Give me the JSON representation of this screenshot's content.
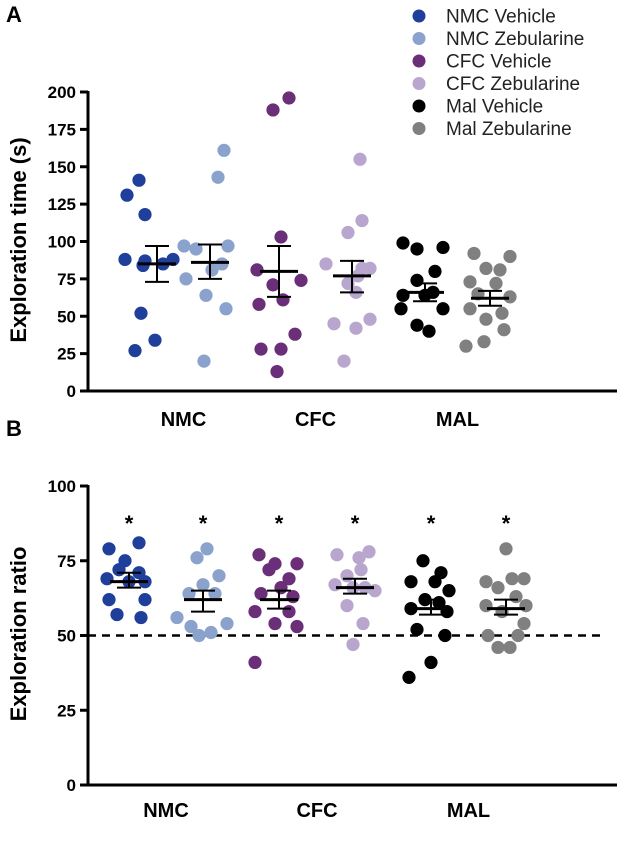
{
  "chart_data": [
    {
      "panel_label": "A",
      "type": "scatter",
      "ylabel": "Exploration time (s)",
      "ylim": [
        0,
        200
      ],
      "yticks": [
        "0",
        "25",
        "50",
        "75",
        "100",
        "125",
        "150",
        "175",
        "200"
      ],
      "group_labels": [
        "NMC",
        "CFC",
        "MAL"
      ],
      "series": [
        {
          "name": "NMC Vehicle",
          "color": "#1f3f9a",
          "mean": 85,
          "sem_low": 73,
          "sem_high": 97,
          "points": [
            [
              -0.9,
              141
            ],
            [
              -1.5,
              131
            ],
            [
              -0.6,
              118
            ],
            [
              -1.6,
              88
            ],
            [
              -0.6,
              87
            ],
            [
              0.8,
              88
            ],
            [
              -0.7,
              84
            ],
            [
              0.3,
              85
            ],
            [
              -0.8,
              52
            ],
            [
              -0.1,
              34
            ],
            [
              -1.1,
              27
            ]
          ]
        },
        {
          "name": "NMC Zebularine",
          "color": "#8aa2cc",
          "mean": 86,
          "sem_low": 75,
          "sem_high": 98,
          "points": [
            [
              0.7,
              161
            ],
            [
              0.4,
              143
            ],
            [
              -1.3,
              97
            ],
            [
              -0.7,
              95
            ],
            [
              0.9,
              97
            ],
            [
              0.6,
              85
            ],
            [
              0.1,
              81
            ],
            [
              -1.2,
              75
            ],
            [
              -0.2,
              64
            ],
            [
              0.8,
              55
            ],
            [
              -0.3,
              20
            ]
          ]
        },
        {
          "name": "CFC Vehicle",
          "color": "#6b2e78",
          "mean": 80,
          "sem_low": 63,
          "sem_high": 97,
          "points": [
            [
              -0.3,
              188
            ],
            [
              0.5,
              196
            ],
            [
              0.1,
              103
            ],
            [
              -1.1,
              81
            ],
            [
              1.1,
              74
            ],
            [
              -0.3,
              71
            ],
            [
              0.2,
              61
            ],
            [
              -1.0,
              58
            ],
            [
              0.8,
              38
            ],
            [
              -0.9,
              28
            ],
            [
              0.1,
              28
            ],
            [
              -0.1,
              13
            ]
          ]
        },
        {
          "name": "CFC Zebularine",
          "color": "#b8a6cf",
          "mean": 77,
          "sem_low": 66,
          "sem_high": 87,
          "points": [
            [
              0.4,
              155
            ],
            [
              0.5,
              114
            ],
            [
              -0.2,
              106
            ],
            [
              -1.3,
              85
            ],
            [
              0.5,
              82
            ],
            [
              0.9,
              82
            ],
            [
              0.3,
              77
            ],
            [
              -0.2,
              72
            ],
            [
              0.2,
              66
            ],
            [
              0.9,
              48
            ],
            [
              -0.9,
              45
            ],
            [
              0.2,
              42
            ],
            [
              -0.4,
              20
            ]
          ]
        },
        {
          "name": "Mal Vehicle",
          "color": "#000000",
          "mean": 66,
          "sem_low": 60,
          "sem_high": 72,
          "points": [
            [
              -1.1,
              99
            ],
            [
              -0.4,
              95
            ],
            [
              0.9,
              96
            ],
            [
              0.5,
              80
            ],
            [
              -0.4,
              74
            ],
            [
              -1.1,
              64
            ],
            [
              0.0,
              64
            ],
            [
              0.4,
              66
            ],
            [
              -1.2,
              55
            ],
            [
              0.9,
              55
            ],
            [
              -0.4,
              44
            ],
            [
              0.2,
              40
            ]
          ]
        },
        {
          "name": "Mal Zebularine",
          "color": "#808080",
          "mean": 62,
          "sem_low": 57,
          "sem_high": 67,
          "points": [
            [
              -0.8,
              92
            ],
            [
              1.0,
              90
            ],
            [
              -0.2,
              82
            ],
            [
              0.5,
              81
            ],
            [
              -1.0,
              73
            ],
            [
              0.3,
              72
            ],
            [
              -0.6,
              65
            ],
            [
              1.0,
              63
            ],
            [
              -1.0,
              55
            ],
            [
              0.6,
              52
            ],
            [
              -0.2,
              48
            ],
            [
              0.7,
              41
            ],
            [
              -1.2,
              30
            ],
            [
              -0.3,
              33
            ]
          ]
        }
      ]
    },
    {
      "panel_label": "B",
      "type": "scatter",
      "ylabel": "Exploration ratio",
      "ylim": [
        0,
        100
      ],
      "yticks": [
        "0",
        "25",
        "50",
        "75",
        "100"
      ],
      "group_labels": [
        "NMC",
        "CFC",
        "MAL"
      ],
      "reference_line": 50,
      "significance_marker": "*",
      "series": [
        {
          "name": "NMC Vehicle",
          "color": "#1f3f9a",
          "mean": 68,
          "sem_low": 66,
          "sem_high": 71,
          "points": [
            [
              0.5,
              81
            ],
            [
              -1.0,
              79
            ],
            [
              -0.2,
              75
            ],
            [
              -0.5,
              72
            ],
            [
              0.5,
              71
            ],
            [
              -1.1,
              69
            ],
            [
              0.0,
              68
            ],
            [
              0.8,
              68
            ],
            [
              -1.0,
              62
            ],
            [
              0.8,
              62
            ],
            [
              -0.6,
              57
            ],
            [
              0.6,
              56
            ]
          ]
        },
        {
          "name": "NMC Zebularine",
          "color": "#8aa2cc",
          "mean": 62,
          "sem_low": 58,
          "sem_high": 65,
          "points": [
            [
              0.2,
              79
            ],
            [
              -0.3,
              76
            ],
            [
              0.8,
              70
            ],
            [
              0.0,
              67
            ],
            [
              -0.7,
              64
            ],
            [
              0.6,
              64
            ],
            [
              -1.3,
              56
            ],
            [
              -0.6,
              53
            ],
            [
              1.2,
              54
            ],
            [
              -0.2,
              50
            ],
            [
              0.4,
              51
            ]
          ]
        },
        {
          "name": "CFC Vehicle",
          "color": "#6b2e78",
          "mean": 62,
          "sem_low": 59,
          "sem_high": 65,
          "points": [
            [
              -1.0,
              77
            ],
            [
              -0.2,
              74
            ],
            [
              0.9,
              74
            ],
            [
              -0.5,
              72
            ],
            [
              0.5,
              69
            ],
            [
              0.1,
              66
            ],
            [
              -0.9,
              64
            ],
            [
              0.7,
              63
            ],
            [
              -1.2,
              58
            ],
            [
              0.5,
              58
            ],
            [
              -0.2,
              54
            ],
            [
              0.9,
              53
            ],
            [
              -1.2,
              41
            ]
          ]
        },
        {
          "name": "CFC Zebularine",
          "color": "#b8a6cf",
          "mean": 66,
          "sem_low": 64,
          "sem_high": 69,
          "points": [
            [
              -0.9,
              77
            ],
            [
              0.7,
              78
            ],
            [
              0.2,
              76
            ],
            [
              0.3,
              72
            ],
            [
              -0.4,
              70
            ],
            [
              -1.0,
              67
            ],
            [
              0.5,
              66
            ],
            [
              -0.1,
              66
            ],
            [
              1.0,
              65
            ],
            [
              -0.4,
              60
            ],
            [
              0.4,
              54
            ],
            [
              -0.1,
              47
            ]
          ]
        },
        {
          "name": "Mal Vehicle",
          "color": "#000000",
          "mean": 59,
          "sem_low": 57,
          "sem_high": 62,
          "points": [
            [
              -0.4,
              75
            ],
            [
              0.5,
              71
            ],
            [
              -1.0,
              68
            ],
            [
              0.2,
              68
            ],
            [
              0.9,
              65
            ],
            [
              -0.3,
              62
            ],
            [
              0.4,
              61
            ],
            [
              -1.0,
              59
            ],
            [
              0.8,
              58
            ],
            [
              -0.7,
              52
            ],
            [
              0.7,
              50
            ],
            [
              0.0,
              41
            ],
            [
              -1.1,
              36
            ]
          ]
        },
        {
          "name": "Mal Zebularine",
          "color": "#808080",
          "mean": 59,
          "sem_low": 57,
          "sem_high": 62,
          "points": [
            [
              0.0,
              79
            ],
            [
              -1.0,
              68
            ],
            [
              0.3,
              69
            ],
            [
              0.9,
              69
            ],
            [
              -0.4,
              66
            ],
            [
              0.5,
              63
            ],
            [
              -1.0,
              60
            ],
            [
              1.0,
              60
            ],
            [
              -0.2,
              58
            ],
            [
              0.9,
              54
            ],
            [
              -0.9,
              50
            ],
            [
              0.6,
              50
            ],
            [
              -0.4,
              46
            ],
            [
              0.2,
              46
            ]
          ]
        }
      ]
    }
  ],
  "legend": [
    {
      "label": "NMC Vehicle",
      "color": "#1f3f9a"
    },
    {
      "label": "NMC Zebularine",
      "color": "#8aa2cc"
    },
    {
      "label": "CFC Vehicle",
      "color": "#6b2e78"
    },
    {
      "label": "CFC Zebularine",
      "color": "#b8a6cf"
    },
    {
      "label": "Mal Vehicle",
      "color": "#000000"
    },
    {
      "label": "Mal Zebularine",
      "color": "#808080"
    }
  ]
}
